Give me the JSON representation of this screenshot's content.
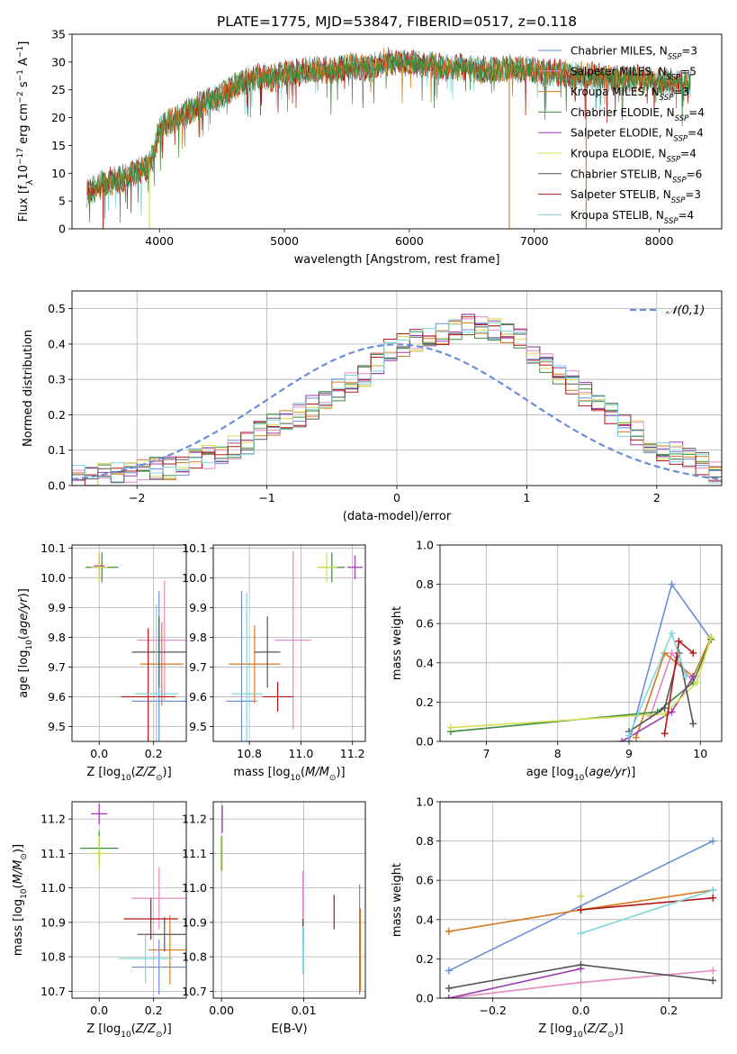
{
  "colors": {
    "Chabrier MILES": "#6a8ed8",
    "Salpeter MILES": "#e48ac0",
    "Kroupa MILES": "#d9781e",
    "Chabrier ELODIE": "#3c8c3c",
    "Salpeter ELODIE": "#9c3cb0",
    "Kroupa ELODIE": "#d6dc52",
    "Chabrier STELIB": "#555555",
    "Salpeter STELIB": "#b01818",
    "Kroupa STELIB": "#7ed6da"
  },
  "chart_data": [
    {
      "id": "spectrum",
      "type": "line",
      "title": "PLATE=1775, MJD=53847, FIBERID=0517, z=0.118",
      "xlabel": "wavelength [Angstrom, rest frame]",
      "ylabel": "Flux [f_λ10^-17 erg cm^-2 s^-1 A^-1]",
      "xlim": [
        3300,
        8500
      ],
      "ylim": [
        0,
        35
      ],
      "xticks": [
        4000,
        5000,
        6000,
        7000,
        8000
      ],
      "yticks": [
        0,
        5,
        10,
        15,
        20,
        25,
        30,
        35
      ],
      "legend_position": "top-right",
      "legend": [
        {
          "name": "Chabrier MILES",
          "n": "3"
        },
        {
          "name": "Salpeter MILES",
          "n": "5"
        },
        {
          "name": "Kroupa MILES",
          "n": "3"
        },
        {
          "name": "Chabrier ELODIE",
          "n": "4"
        },
        {
          "name": "Salpeter ELODIE",
          "n": "4"
        },
        {
          "name": "Kroupa ELODIE",
          "n": "4"
        },
        {
          "name": "Chabrier STELIB",
          "n": "6"
        },
        {
          "name": "Salpeter STELIB",
          "n": "3"
        },
        {
          "name": "Kroupa STELIB",
          "n": "4"
        }
      ],
      "envelope": {
        "x": [
          3420,
          3500,
          3600,
          3700,
          3800,
          3900,
          3950,
          4000,
          4100,
          4200,
          4300,
          4400,
          4500,
          4600,
          4700,
          4800,
          4900,
          5000,
          5100,
          5200,
          5300,
          5400,
          5500,
          5600,
          5700,
          5800,
          5900,
          6000,
          6100,
          6200,
          6300,
          6400,
          6500,
          6600,
          6700,
          6800,
          6900,
          7000,
          7100,
          7200,
          7300,
          7400,
          7500,
          7600,
          7700,
          7800,
          7900,
          8000,
          8100,
          8200,
          8250
        ],
        "y": [
          6.5,
          7.5,
          8.5,
          9,
          10,
          11,
          13,
          18,
          19.5,
          20.5,
          22,
          23,
          24,
          25.5,
          26.5,
          27.5,
          27,
          28,
          28,
          28.5,
          28.5,
          28.5,
          29,
          29,
          29,
          30,
          30,
          30,
          29.5,
          29.5,
          29,
          29,
          29,
          28.5,
          28.5,
          29,
          28.5,
          28.5,
          28,
          28,
          27.5,
          27.5,
          27.5,
          27,
          27,
          27,
          27,
          26.5,
          26.5,
          26,
          26
        ]
      },
      "dropouts": [
        {
          "x": 3550,
          "y": 0,
          "model": "Salpeter STELIB"
        },
        {
          "x": 3920,
          "y": 0,
          "model": "Kroupa ELODIE"
        },
        {
          "x": 6800,
          "y": 0,
          "model": "Kroupa MILES"
        },
        {
          "x": 7415,
          "y": 0,
          "model": "Kroupa MILES"
        }
      ]
    },
    {
      "id": "residuals",
      "type": "histogram",
      "xlabel": "(data-model)/error",
      "ylabel": "Normed distribution",
      "xlim": [
        -2.5,
        2.5
      ],
      "ylim": [
        0,
        0.55
      ],
      "xticks": [
        -2,
        -1,
        0,
        1,
        2
      ],
      "yticks": [
        0.0,
        0.1,
        0.2,
        0.3,
        0.4,
        0.5
      ],
      "bin_edges_start": -2.5,
      "bin_width": 0.1,
      "reference_curve": {
        "label": "𝒩(0,1)",
        "style": "dashed",
        "color": "#6a8ed8"
      },
      "legend_position": "top-right",
      "base_density": [
        0.025,
        0.03,
        0.03,
        0.03,
        0.035,
        0.04,
        0.05,
        0.05,
        0.06,
        0.07,
        0.08,
        0.09,
        0.11,
        0.12,
        0.15,
        0.17,
        0.18,
        0.2,
        0.22,
        0.25,
        0.27,
        0.29,
        0.31,
        0.35,
        0.38,
        0.4,
        0.41,
        0.42,
        0.43,
        0.44,
        0.46,
        0.45,
        0.44,
        0.43,
        0.41,
        0.38,
        0.35,
        0.31,
        0.29,
        0.26,
        0.23,
        0.2,
        0.17,
        0.15,
        0.12,
        0.1,
        0.09,
        0.08,
        0.06,
        0.04
      ]
    },
    {
      "id": "age-vs-Z",
      "type": "errorbar",
      "xlabel": "Z [log₁₀(Z/Z☉)]",
      "ylabel": "age  [log₁₀(age/yr)]",
      "xlim": [
        -0.1,
        0.32
      ],
      "ylim": [
        9.45,
        10.11
      ],
      "xticks": [
        0.0,
        0.2
      ],
      "yticks": [
        9.5,
        9.6,
        9.7,
        9.8,
        9.9,
        10.0,
        10.1
      ],
      "points": [
        {
          "model": "Chabrier MILES",
          "x": 0.22,
          "y": 9.585,
          "xerr": 0.1,
          "yerr": 0.37
        },
        {
          "model": "Salpeter MILES",
          "x": 0.24,
          "y": 9.79,
          "xerr": 0.1,
          "yerr": 0.2
        },
        {
          "model": "Kroupa MILES",
          "x": 0.23,
          "y": 9.71,
          "xerr": 0.08,
          "yerr": 0.14
        },
        {
          "model": "Chabrier ELODIE",
          "x": 0.01,
          "y": 10.035,
          "xerr": 0.06,
          "yerr": 0.05
        },
        {
          "model": "Salpeter ELODIE",
          "x": 0.0,
          "y": 10.04,
          "xerr": 0.02,
          "yerr": 0.04
        },
        {
          "model": "Kroupa ELODIE",
          "x": 0.0,
          "y": 10.035,
          "xerr": 0.03,
          "yerr": 0.05
        },
        {
          "model": "Chabrier STELIB",
          "x": 0.22,
          "y": 9.75,
          "xerr": 0.1,
          "yerr": 0.12
        },
        {
          "model": "Salpeter STELIB",
          "x": 0.18,
          "y": 9.6,
          "xerr": 0.1,
          "yerr": 0.23
        },
        {
          "model": "Kroupa STELIB",
          "x": 0.21,
          "y": 9.61,
          "xerr": 0.08,
          "yerr": 0.3
        }
      ]
    },
    {
      "id": "age-vs-mass",
      "type": "errorbar",
      "xlabel": "mass [log₁₀(M/M☉)]",
      "ylabel": "",
      "xlim": [
        10.66,
        11.25
      ],
      "ylim": [
        9.45,
        10.11
      ],
      "xticks": [
        10.8,
        11.0,
        11.2
      ],
      "yticks": [
        9.5,
        9.6,
        9.7,
        9.8,
        9.9,
        10.0,
        10.1
      ],
      "points": [
        {
          "model": "Chabrier MILES",
          "x": 10.77,
          "y": 9.585,
          "xerr": 0.06,
          "yerr": 0.37
        },
        {
          "model": "Salpeter MILES",
          "x": 10.97,
          "y": 9.79,
          "xerr": 0.07,
          "yerr": 0.3
        },
        {
          "model": "Kroupa MILES",
          "x": 10.82,
          "y": 9.71,
          "xerr": 0.1,
          "yerr": 0.13
        },
        {
          "model": "Chabrier ELODIE",
          "x": 11.12,
          "y": 10.035,
          "xerr": 0.05,
          "yerr": 0.05
        },
        {
          "model": "Salpeter ELODIE",
          "x": 11.21,
          "y": 10.035,
          "xerr": 0.03,
          "yerr": 0.04
        },
        {
          "model": "Kroupa ELODIE",
          "x": 11.1,
          "y": 10.035,
          "xerr": 0.04,
          "yerr": 0.05
        },
        {
          "model": "Chabrier STELIB",
          "x": 10.87,
          "y": 9.75,
          "xerr": 0.05,
          "yerr": 0.12
        },
        {
          "model": "Salpeter STELIB",
          "x": 10.91,
          "y": 9.6,
          "xerr": 0.06,
          "yerr": 0.05
        },
        {
          "model": "Kroupa STELIB",
          "x": 10.79,
          "y": 9.61,
          "xerr": 0.06,
          "yerr": 0.34
        }
      ]
    },
    {
      "id": "weight-vs-age",
      "type": "line",
      "xlabel": "age  [log₁₀(age/yr)]",
      "ylabel": "mass weight",
      "xlim": [
        6.35,
        10.3
      ],
      "ylim": [
        0,
        1.0
      ],
      "xticks": [
        7,
        8,
        9,
        10
      ],
      "yticks": [
        0.0,
        0.2,
        0.4,
        0.6,
        0.8,
        1.0
      ],
      "series": [
        {
          "model": "Chabrier MILES",
          "x": [
            9.0,
            9.6,
            10.15
          ],
          "y": [
            0.0,
            0.8,
            0.52
          ]
        },
        {
          "model": "Salpeter MILES",
          "x": [
            9.3,
            9.6,
            9.9,
            10.15
          ],
          "y": [
            0.13,
            0.45,
            0.3,
            0.52
          ]
        },
        {
          "model": "Kroupa MILES",
          "x": [
            9.1,
            9.5,
            9.9,
            10.15
          ],
          "y": [
            0.02,
            0.45,
            0.33,
            0.53
          ]
        },
        {
          "model": "Chabrier ELODIE",
          "x": [
            6.5,
            9.4,
            9.9,
            10.15
          ],
          "y": [
            0.05,
            0.15,
            0.3,
            0.52
          ]
        },
        {
          "model": "Salpeter ELODIE",
          "x": [
            8.9,
            9.6,
            9.9
          ],
          "y": [
            0.0,
            0.15,
            0.33
          ]
        },
        {
          "model": "Kroupa ELODIE",
          "x": [
            6.5,
            9.5,
            9.95,
            10.15
          ],
          "y": [
            0.07,
            0.14,
            0.3,
            0.53
          ]
        },
        {
          "model": "Chabrier STELIB",
          "x": [
            9.0,
            9.5,
            9.7,
            9.9
          ],
          "y": [
            0.05,
            0.17,
            0.45,
            0.09
          ]
        },
        {
          "model": "Salpeter STELIB",
          "x": [
            9.5,
            9.7,
            9.9
          ],
          "y": [
            0.04,
            0.51,
            0.45
          ]
        },
        {
          "model": "Kroupa STELIB",
          "x": [
            9.0,
            9.6,
            9.8
          ],
          "y": [
            0.03,
            0.55,
            0.33
          ]
        }
      ]
    },
    {
      "id": "mass-vs-Z",
      "type": "errorbar",
      "xlabel": "Z [log₁₀(Z/Z☉)]",
      "ylabel": "mass [log₁₀(M/M☉)]",
      "xlim": [
        -0.1,
        0.32
      ],
      "ylim": [
        10.68,
        11.25
      ],
      "xticks": [
        0.0,
        0.2
      ],
      "yticks": [
        10.7,
        10.8,
        10.9,
        11.0,
        11.1,
        11.2
      ],
      "points": [
        {
          "model": "Chabrier MILES",
          "x": 0.22,
          "y": 10.77,
          "xerr": 0.1,
          "yerr": 0.08
        },
        {
          "model": "Salpeter MILES",
          "x": 0.22,
          "y": 10.97,
          "xerr": 0.1,
          "yerr": 0.09
        },
        {
          "model": "Kroupa MILES",
          "x": 0.26,
          "y": 10.82,
          "xerr": 0.08,
          "yerr": 0.1
        },
        {
          "model": "Chabrier ELODIE",
          "x": 0.0,
          "y": 11.115,
          "xerr": 0.07,
          "yerr": 0.05
        },
        {
          "model": "Salpeter ELODIE",
          "x": 0.0,
          "y": 11.215,
          "xerr": 0.03,
          "yerr": 0.03
        },
        {
          "model": "Kroupa ELODIE",
          "x": 0.0,
          "y": 11.1,
          "xerr": 0.03,
          "yerr": 0.05
        },
        {
          "model": "Chabrier STELIB",
          "x": 0.24,
          "y": 10.865,
          "xerr": 0.1,
          "yerr": 0.05
        },
        {
          "model": "Salpeter STELIB",
          "x": 0.19,
          "y": 10.91,
          "xerr": 0.1,
          "yerr": 0.06
        },
        {
          "model": "Kroupa STELIB",
          "x": 0.17,
          "y": 10.795,
          "xerr": 0.1,
          "yerr": 0.07
        }
      ]
    },
    {
      "id": "mass-vs-ebv",
      "type": "errorbar",
      "xlabel": "E(B-V)",
      "ylabel": "",
      "xlim": [
        -0.001,
        0.0175
      ],
      "ylim": [
        10.68,
        11.25
      ],
      "xticks": [
        0.0,
        0.01
      ],
      "yticks": [
        10.7,
        10.8,
        10.9,
        11.0,
        11.1,
        11.2
      ],
      "points": [
        {
          "model": "Chabrier MILES",
          "x": 0.0168,
          "y": 10.85,
          "xerr": 0.0,
          "yerr": 0.16
        },
        {
          "model": "Salpeter MILES",
          "x": 0.0099,
          "y": 10.9,
          "xerr": 0.0,
          "yerr": 0.15
        },
        {
          "model": "Kroupa MILES",
          "x": 0.0169,
          "y": 10.82,
          "xerr": 0.0,
          "yerr": 0.12
        },
        {
          "model": "Chabrier ELODIE",
          "x": 0.0,
          "y": 11.1,
          "xerr": 0.0,
          "yerr": 0.05
        },
        {
          "model": "Salpeter ELODIE",
          "x": 0.0001,
          "y": 11.2,
          "xerr": 0.0,
          "yerr": 0.04
        },
        {
          "model": "Kroupa ELODIE",
          "x": 0.0001,
          "y": 11.1,
          "xerr": 0.0,
          "yerr": 0.05
        },
        {
          "model": "Chabrier STELIB",
          "x": 0.0099,
          "y": 10.88,
          "xerr": 0.0,
          "yerr": 0.03
        },
        {
          "model": "Salpeter STELIB",
          "x": 0.0137,
          "y": 10.93,
          "xerr": 0.0,
          "yerr": 0.05
        },
        {
          "model": "Kroupa STELIB",
          "x": 0.0099,
          "y": 10.82,
          "xerr": 0.0,
          "yerr": 0.07
        }
      ]
    },
    {
      "id": "weight-vs-Z",
      "type": "line",
      "xlabel": "Z [log₁₀(Z/Z☉)]",
      "ylabel": "mass weight",
      "xlim": [
        -0.32,
        0.32
      ],
      "ylim": [
        0,
        1.0
      ],
      "xticks": [
        -0.2,
        0.0,
        0.2
      ],
      "yticks": [
        0.0,
        0.2,
        0.4,
        0.6,
        0.8,
        1.0
      ],
      "series": [
        {
          "model": "Chabrier MILES",
          "x": [
            -0.3,
            0.3
          ],
          "y": [
            0.14,
            0.8
          ]
        },
        {
          "model": "Salpeter MILES",
          "x": [
            -0.3,
            0.0,
            0.3
          ],
          "y": [
            0.0,
            0.08,
            0.14
          ]
        },
        {
          "model": "Kroupa MILES",
          "x": [
            -0.3,
            0.0,
            0.3
          ],
          "y": [
            0.34,
            0.45,
            0.55
          ]
        },
        {
          "model": "Chabrier ELODIE",
          "x": [
            0.0
          ],
          "y": [
            0.52
          ]
        },
        {
          "model": "Salpeter ELODIE",
          "x": [
            -0.3,
            0.0
          ],
          "y": [
            0.0,
            0.15
          ]
        },
        {
          "model": "Kroupa ELODIE",
          "x": [
            0.0
          ],
          "y": [
            0.52
          ]
        },
        {
          "model": "Chabrier STELIB",
          "x": [
            -0.3,
            0.0,
            0.3
          ],
          "y": [
            0.05,
            0.17,
            0.09
          ]
        },
        {
          "model": "Salpeter STELIB",
          "x": [
            0.0,
            0.3
          ],
          "y": [
            0.45,
            0.51
          ]
        },
        {
          "model": "Kroupa STELIB",
          "x": [
            0.0,
            0.3
          ],
          "y": [
            0.33,
            0.55
          ]
        }
      ]
    }
  ]
}
